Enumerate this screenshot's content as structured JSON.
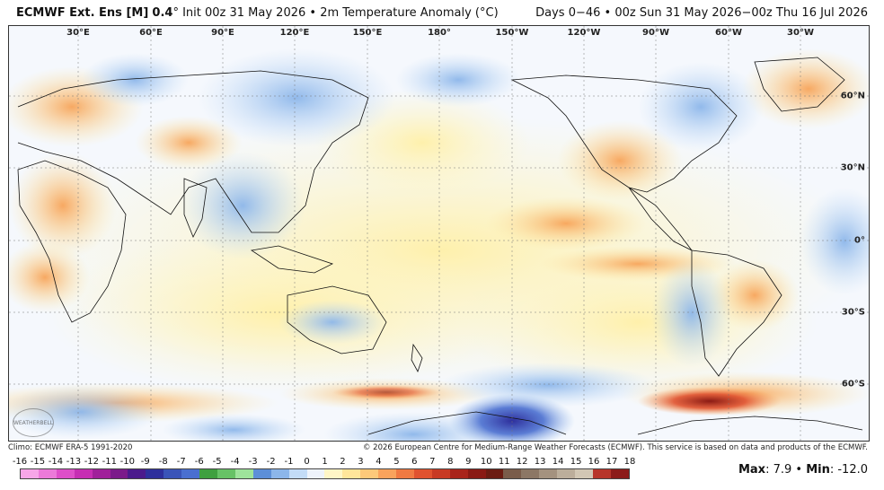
{
  "header": {
    "model": "ECMWF Ext. Ens [M]",
    "version": "0.4",
    "degree_mark": "°",
    "init": "Init 00z 31 May 2026",
    "bullet": "•",
    "field": "2m Temperature Anomaly (°C)",
    "range": "Days 0−46 • 00z Sun 31 May 2026−00z Thu 16 Jul 2026"
  },
  "map": {
    "lon_labels": [
      "30°E",
      "60°E",
      "90°E",
      "120°E",
      "150°E",
      "180°",
      "150°W",
      "120°W",
      "90°W",
      "60°W",
      "30°W"
    ],
    "lat_labels": [
      "60°N",
      "30°N",
      "0°",
      "30°S",
      "60°S"
    ],
    "watermark": "WEATHERBELL"
  },
  "footer": {
    "climo": "Climo: ECMWF ERA-5 1991-2020",
    "copyright": "© 2026 European Centre for Medium-Range Weather Forecasts (ECMWF). This service is based on data and products of the ECMWF."
  },
  "colorbar": {
    "ticks": [
      "-16",
      "-15",
      "-14",
      "-13",
      "-12",
      "-11",
      "-10",
      "-9",
      "-8",
      "-7",
      "-6",
      "-5",
      "-4",
      "-3",
      "-2",
      "-1",
      "0",
      "1",
      "2",
      "3",
      "4",
      "5",
      "6",
      "7",
      "8",
      "9",
      "10",
      "11",
      "12",
      "13",
      "14",
      "15",
      "16",
      "17",
      "18"
    ],
    "colors": [
      "#f7a6e8",
      "#ec7ad9",
      "#de4fc9",
      "#c62eb3",
      "#a0209a",
      "#7b1a8a",
      "#4b1a8c",
      "#2e2f9c",
      "#3a54b8",
      "#4a6fd0",
      "#3fa03f",
      "#67c266",
      "#9ee39b",
      "#5d8fd8",
      "#8cb6ea",
      "#c3dcf7",
      "#eef3fb",
      "#fff6c6",
      "#ffe69a",
      "#fdc97a",
      "#f9a35c",
      "#f07a42",
      "#e0522f",
      "#c83a24",
      "#a9241b",
      "#8a1a14",
      "#6b1c12",
      "#7a5c4a",
      "#8c7765",
      "#a4927f",
      "#bcae9b",
      "#d2c7b4",
      "#b7352a",
      "#8c1c1a"
    ]
  },
  "stats": {
    "max_label": "Max",
    "max_value": ": 7.9",
    "sep": " • ",
    "min_label": "Min",
    "min_value": ": -12.0"
  }
}
